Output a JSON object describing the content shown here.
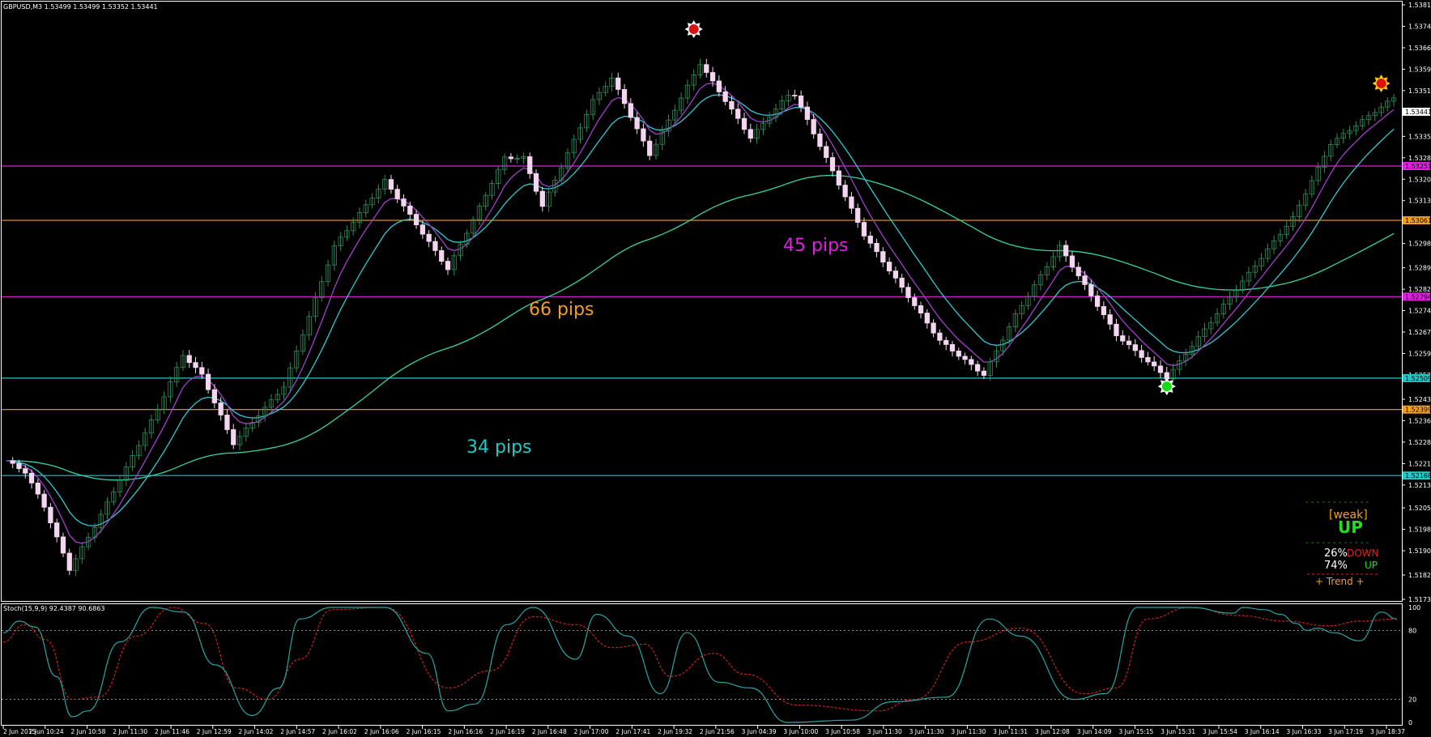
{
  "header": {
    "symbol": "GBPUSD,M3  1.53499 1.53499 1.53352 1.53441",
    "stoch_label": "Stoch(15,9,9) 92.4387 90.6863"
  },
  "colors": {
    "background": "#000000",
    "bull": "#2E8B57",
    "bear": "#F4D6F0",
    "ma_fast": "#A040C8",
    "ma_mid": "#30C8D0",
    "ma_slow": "#33D6A0",
    "level_magenta": "#E020E0",
    "level_orange": "#F0A020",
    "level_cyan": "#20C8C8",
    "stoch_main": "#2AA4A4",
    "stoch_signal": "#D02020"
  },
  "annotations": {
    "pips_45": "45 pips",
    "pips_66": "66 pips",
    "pips_34": "34 pips"
  },
  "panel": {
    "dash_top": "- - - - - - - - - - - -",
    "weak": "[weak]",
    "direction": "UP",
    "dash_mid": "- - - - - - - - - - - -",
    "down_pct": "26%",
    "down_label": "DOWN",
    "up_pct": "74%",
    "up_label": "UP",
    "trend_line": "+ Trend +"
  },
  "chart_data": [
    {
      "type": "candlestick",
      "title": "GBPUSD,M3",
      "ylim": [
        1.51735,
        1.53815
      ],
      "y_ticks": [
        1.53815,
        1.5374,
        1.53665,
        1.5359,
        1.53515,
        1.5344,
        1.53355,
        1.5328,
        1.53205,
        1.5313,
        1.53055,
        1.5298,
        1.52895,
        1.5282,
        1.52745,
        1.5267,
        1.52595,
        1.5252,
        1.52435,
        1.5236,
        1.52285,
        1.5221,
        1.52135,
        1.52055,
        1.5198,
        1.51905,
        1.5182,
        1.51735
      ],
      "x_ticks": [
        "2 Jun 2015",
        "2 Jun 10:24",
        "2 Jun 10:58",
        "2 Jun 11:30",
        "2 Jun 11:46",
        "2 Jun 12:59",
        "2 Jun 14:02",
        "2 Jun 14:57",
        "2 Jun 16:02",
        "2 Jun 16:06",
        "2 Jun 16:15",
        "2 Jun 16:16",
        "2 Jun 16:19",
        "2 Jun 16:48",
        "2 Jun 17:00",
        "2 Jun 17:41",
        "2 Jun 19:32",
        "2 Jun 21:56",
        "3 Jun 04:39",
        "3 Jun 10:00",
        "3 Jun 10:58",
        "3 Jun 11:30",
        "3 Jun 11:30",
        "3 Jun 11:30",
        "3 Jun 11:31",
        "3 Jun 12:08",
        "3 Jun 14:09",
        "3 Jun 15:15",
        "3 Jun 15:31",
        "3 Jun 15:54",
        "3 Jun 16:14",
        "3 Jun 16:33",
        "3 Jun 17:19",
        "3 Jun 18:37"
      ],
      "price_tag": "1.53441",
      "horizontal_levels": [
        {
          "value": 1.53251,
          "label": "1.53251",
          "color": "#E020E0"
        },
        {
          "value": 1.53061,
          "label": "1.53061",
          "color": "#F0A020"
        },
        {
          "value": 1.52794,
          "label": "1.52794",
          "color": "#E020E0"
        },
        {
          "value": 1.52509,
          "label": "1.52509",
          "color": "#20C8C8"
        },
        {
          "value": 1.52399,
          "label": "1.52399",
          "color": "#F0A020"
        },
        {
          "value": 1.52168,
          "label": "1.52168",
          "color": "#20C8C8"
        }
      ],
      "waypoints": [
        [
          0,
          1.5222
        ],
        [
          3,
          1.5218
        ],
        [
          6,
          1.5206
        ],
        [
          10,
          1.5184
        ],
        [
          14,
          1.5199
        ],
        [
          24,
          1.524
        ],
        [
          28,
          1.5259
        ],
        [
          31,
          1.5252
        ],
        [
          36,
          1.5228
        ],
        [
          44,
          1.5248
        ],
        [
          52,
          1.5297
        ],
        [
          60,
          1.532
        ],
        [
          63,
          1.5311
        ],
        [
          70,
          1.5289
        ],
        [
          79,
          1.5328
        ],
        [
          82,
          1.5328
        ],
        [
          85,
          1.5311
        ],
        [
          93,
          1.5348
        ],
        [
          96,
          1.5356
        ],
        [
          102,
          1.5329
        ],
        [
          110,
          1.5361
        ],
        [
          118,
          1.5335
        ],
        [
          124,
          1.535
        ],
        [
          125,
          1.535
        ],
        [
          136,
          1.5301
        ],
        [
          148,
          1.5264
        ],
        [
          155,
          1.5252
        ],
        [
          160,
          1.5273
        ],
        [
          167,
          1.5297
        ],
        [
          176,
          1.5266
        ],
        [
          184,
          1.5251
        ],
        [
          195,
          1.5282
        ],
        [
          204,
          1.5307
        ],
        [
          210,
          1.5333
        ],
        [
          220,
          1.5349
        ]
      ],
      "markers": [
        {
          "bar": 109,
          "price": 1.5373,
          "kind": "high"
        },
        {
          "bar": 184,
          "price": 1.5248,
          "kind": "low"
        },
        {
          "bar": 218,
          "price": 1.5354,
          "kind": "high"
        }
      ]
    },
    {
      "type": "line",
      "title": "Stoch(15,9,9) 92.4387 90.6863",
      "ylim": [
        0,
        100
      ],
      "y_ticks": [
        100,
        80,
        20,
        0
      ],
      "series": [
        {
          "key": "main",
          "points": [
            [
              0,
              78
            ],
            [
              3,
              88
            ],
            [
              6,
              83
            ],
            [
              10,
              40
            ],
            [
              13,
              5
            ],
            [
              16,
              10
            ],
            [
              22,
              70
            ],
            [
              28,
              100
            ],
            [
              34,
              96
            ],
            [
              40,
              50
            ],
            [
              47,
              6
            ],
            [
              52,
              30
            ],
            [
              56,
              90
            ],
            [
              62,
              100
            ],
            [
              72,
              100
            ],
            [
              80,
              60
            ],
            [
              84,
              10
            ],
            [
              89,
              16
            ],
            [
              95,
              85
            ],
            [
              100,
              100
            ],
            [
              108,
              55
            ],
            [
              112,
              94
            ],
            [
              118,
              75
            ],
            [
              124,
              25
            ],
            [
              129,
              78
            ],
            [
              135,
              35
            ],
            [
              141,
              30
            ],
            [
              148,
              0
            ],
            [
              160,
              2
            ],
            [
              168,
              18
            ],
            [
              178,
              22
            ],
            [
              186,
              90
            ],
            [
              192,
              75
            ],
            [
              202,
              20
            ],
            [
              208,
              25
            ],
            [
              214,
              100
            ],
            [
              224,
              100
            ],
            [
              232,
              95
            ],
            [
              234,
              100
            ],
            [
              238,
              98
            ],
            [
              241,
              94
            ],
            [
              244,
              86
            ],
            [
              246,
              80
            ],
            [
              248,
              82
            ],
            [
              251,
              78
            ],
            [
              256,
              71
            ],
            [
              260,
              96
            ],
            [
              263,
              90
            ]
          ]
        },
        {
          "key": "signal",
          "points": [
            [
              0,
              70
            ],
            [
              4,
              85
            ],
            [
              8,
              72
            ],
            [
              13,
              20
            ],
            [
              18,
              22
            ],
            [
              25,
              75
            ],
            [
              32,
              100
            ],
            [
              38,
              86
            ],
            [
              44,
              30
            ],
            [
              50,
              20
            ],
            [
              56,
              55
            ],
            [
              62,
              98
            ],
            [
              72,
              100
            ],
            [
              84,
              30
            ],
            [
              92,
              45
            ],
            [
              100,
              92
            ],
            [
              108,
              85
            ],
            [
              115,
              65
            ],
            [
              121,
              68
            ],
            [
              126,
              40
            ],
            [
              134,
              60
            ],
            [
              140,
              42
            ],
            [
              150,
              15
            ],
            [
              165,
              10
            ],
            [
              172,
              20
            ],
            [
              182,
              70
            ],
            [
              192,
              82
            ],
            [
              204,
              25
            ],
            [
              210,
              30
            ],
            [
              216,
              90
            ],
            [
              224,
              100
            ],
            [
              233,
              93
            ],
            [
              242,
              88
            ],
            [
              250,
              84
            ],
            [
              256,
              88
            ],
            [
              263,
              90
            ]
          ]
        }
      ]
    }
  ]
}
